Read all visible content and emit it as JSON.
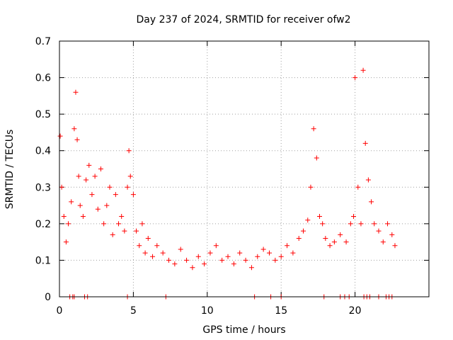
{
  "chart_data": {
    "type": "scatter",
    "title": "Day 237 of 2024, SRMTID for receiver ofw2",
    "xlabel": "GPS time / hours",
    "ylabel": "SRMTID / TECUs",
    "xlim": [
      0,
      25
    ],
    "ylim": [
      0,
      0.7
    ],
    "xticks": [
      0,
      5,
      10,
      15,
      20
    ],
    "yticks": [
      0,
      0.1,
      0.2,
      0.3,
      0.4,
      0.5,
      0.6,
      0.7
    ],
    "grid": true,
    "marker": "+",
    "color": "#ff0000",
    "series": [
      {
        "name": "SRMTID",
        "x": [
          0.05,
          0.15,
          0.3,
          0.45,
          0.6,
          0.8,
          1.0,
          1.1,
          1.2,
          1.3,
          1.4,
          1.6,
          1.8,
          2.0,
          2.2,
          2.4,
          2.6,
          2.8,
          3.0,
          3.2,
          3.4,
          3.6,
          3.8,
          4.0,
          4.2,
          4.4,
          4.6,
          4.7,
          4.8,
          5.0,
          5.2,
          5.4,
          5.6,
          5.8,
          6.0,
          6.3,
          6.6,
          7.0,
          7.4,
          7.8,
          8.2,
          8.6,
          9.0,
          9.4,
          9.8,
          10.2,
          10.6,
          11.0,
          11.4,
          11.8,
          12.2,
          12.6,
          13.0,
          13.4,
          13.8,
          14.2,
          14.6,
          15.0,
          15.4,
          15.8,
          16.2,
          16.5,
          16.8,
          17.0,
          17.2,
          17.4,
          17.6,
          17.8,
          18.0,
          18.3,
          18.6,
          19.0,
          19.4,
          19.7,
          19.9,
          20.0,
          20.2,
          20.4,
          20.55,
          20.7,
          20.9,
          21.1,
          21.3,
          21.6,
          21.9,
          22.2,
          22.5,
          22.7
        ],
        "y": [
          0.44,
          0.3,
          0.22,
          0.15,
          0.2,
          0.26,
          0.46,
          0.56,
          0.43,
          0.33,
          0.25,
          0.22,
          0.32,
          0.36,
          0.28,
          0.33,
          0.24,
          0.35,
          0.2,
          0.25,
          0.3,
          0.17,
          0.28,
          0.2,
          0.22,
          0.18,
          0.3,
          0.4,
          0.33,
          0.28,
          0.18,
          0.14,
          0.2,
          0.12,
          0.16,
          0.11,
          0.14,
          0.12,
          0.1,
          0.09,
          0.13,
          0.1,
          0.08,
          0.11,
          0.09,
          0.12,
          0.14,
          0.1,
          0.11,
          0.09,
          0.12,
          0.1,
          0.08,
          0.11,
          0.13,
          0.12,
          0.1,
          0.11,
          0.14,
          0.12,
          0.16,
          0.18,
          0.21,
          0.3,
          0.46,
          0.38,
          0.22,
          0.2,
          0.16,
          0.14,
          0.15,
          0.17,
          0.15,
          0.2,
          0.22,
          0.6,
          0.3,
          0.2,
          0.62,
          0.42,
          0.32,
          0.26,
          0.2,
          0.18,
          0.15,
          0.2,
          0.17,
          0.14
        ],
        "zero_markers_x": [
          0.7,
          0.9,
          1.0,
          1.7,
          1.9,
          4.6,
          7.2,
          13.2,
          14.3,
          15.0,
          17.9,
          19.0,
          19.3,
          19.6,
          20.6,
          20.8,
          21.0,
          21.6,
          22.1,
          22.3,
          22.5
        ]
      }
    ]
  }
}
